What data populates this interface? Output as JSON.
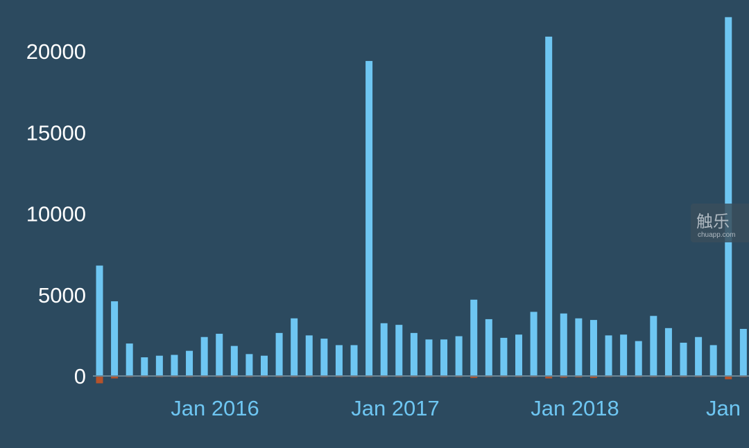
{
  "chart_data": {
    "type": "bar",
    "title": "",
    "xlabel": "",
    "ylabel": "",
    "ylim": [
      0,
      22500
    ],
    "yticks": [
      0,
      5000,
      10000,
      15000,
      20000
    ],
    "xtick_labels": [
      "Jan 2016",
      "Jan 2017",
      "Jan 2018",
      "Jan"
    ],
    "grid": false,
    "legend": "none",
    "colors": {
      "background": "#2c4a5f",
      "bar": "#6ec6f2",
      "negative": "#b5532b",
      "axis": "#6b8594"
    },
    "series": [
      {
        "values": [
          6800,
          4600,
          2000,
          1150,
          1250,
          1300,
          1550,
          2400,
          2600,
          1850,
          1350,
          1250,
          2650,
          3550,
          2500,
          2300,
          1900,
          1900,
          19400,
          3250,
          3150,
          2650,
          2250,
          2250,
          2450,
          4700,
          3500,
          2350,
          2550,
          3950,
          20900,
          3850,
          3550,
          3450,
          2500,
          2550,
          2150,
          3700,
          2950,
          2050,
          2400,
          1900,
          22100,
          2900
        ]
      },
      {
        "values": [
          -450,
          -150,
          -50,
          -20,
          -20,
          -20,
          -20,
          -20,
          -20,
          -20,
          -20,
          -20,
          -20,
          -20,
          -20,
          -20,
          -20,
          -20,
          -50,
          -20,
          -20,
          -20,
          -20,
          -20,
          -20,
          -120,
          -20,
          -20,
          -20,
          -20,
          -150,
          -100,
          -80,
          -120,
          -20,
          -20,
          -20,
          -20,
          -20,
          -20,
          -20,
          -20,
          -200,
          -20
        ]
      }
    ]
  },
  "watermark": {
    "main": "触乐",
    "sub": "chuapp.com"
  }
}
